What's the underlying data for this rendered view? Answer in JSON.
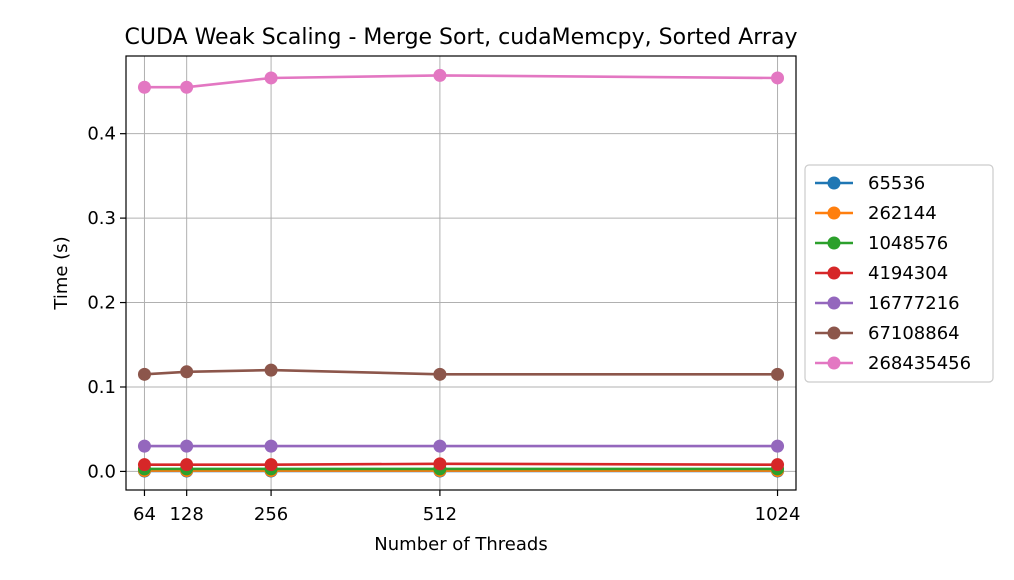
{
  "chart_data": {
    "type": "line",
    "title": "CUDA Weak Scaling - Merge Sort, cudaMemcpy, Sorted Array",
    "xlabel": "Number of Threads",
    "ylabel": "Time (s)",
    "x": [
      64,
      128,
      256,
      512,
      1024
    ],
    "x_tick_labels": [
      "64",
      "128",
      "256",
      "512",
      "1024"
    ],
    "xlim": [
      36,
      1052
    ],
    "ylim": [
      -0.022,
      0.492
    ],
    "y_ticks": [
      0.0,
      0.1,
      0.2,
      0.3,
      0.4
    ],
    "y_tick_labels": [
      "0.0",
      "0.1",
      "0.2",
      "0.3",
      "0.4"
    ],
    "grid": true,
    "legend_position": "right, outside plot",
    "series": [
      {
        "name": "65536",
        "color": "#1f77b4",
        "values": [
          0.0005,
          0.0005,
          0.0005,
          0.0005,
          0.0005
        ]
      },
      {
        "name": "262144",
        "color": "#ff7f0e",
        "values": [
          0.001,
          0.001,
          0.001,
          0.001,
          0.001
        ]
      },
      {
        "name": "1048576",
        "color": "#2ca02c",
        "values": [
          0.003,
          0.003,
          0.003,
          0.003,
          0.003
        ]
      },
      {
        "name": "4194304",
        "color": "#d62728",
        "values": [
          0.008,
          0.008,
          0.008,
          0.009,
          0.008
        ]
      },
      {
        "name": "16777216",
        "color": "#9467bd",
        "values": [
          0.03,
          0.03,
          0.03,
          0.03,
          0.03
        ]
      },
      {
        "name": "67108864",
        "color": "#8c564b",
        "values": [
          0.115,
          0.118,
          0.12,
          0.115,
          0.115
        ]
      },
      {
        "name": "268435456",
        "color": "#e377c2",
        "values": [
          0.455,
          0.455,
          0.466,
          0.469,
          0.466
        ]
      }
    ]
  }
}
